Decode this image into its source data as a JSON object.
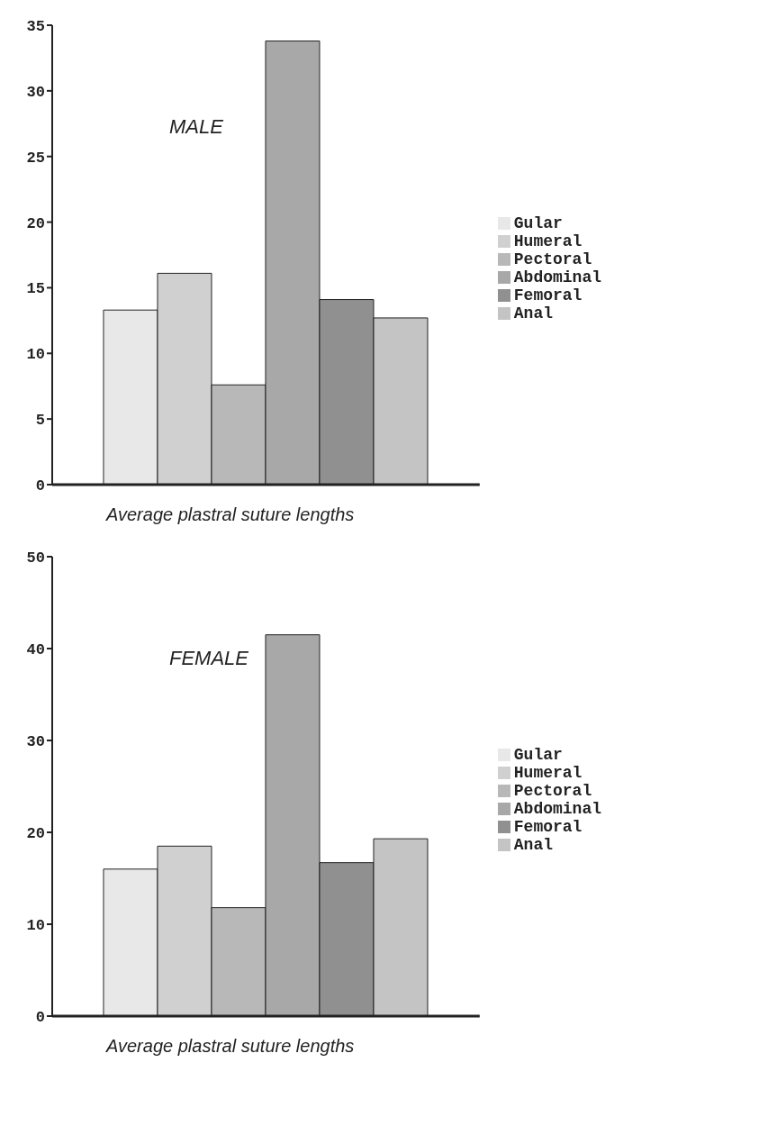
{
  "chart_data": [
    {
      "type": "bar",
      "title": "MALE",
      "xlabel": "Average plastral suture lengths",
      "categories": [
        null
      ],
      "series": [
        {
          "name": "Gular",
          "color": "#e8e8e8",
          "values": [
            13.3
          ]
        },
        {
          "name": "Humeral",
          "color": "#d0d0d0",
          "values": [
            16.1
          ]
        },
        {
          "name": "Pectoral",
          "color": "#b8b8b8",
          "values": [
            7.6
          ]
        },
        {
          "name": "Abdominal",
          "color": "#a8a8a8",
          "values": [
            33.8
          ]
        },
        {
          "name": "Femoral",
          "color": "#909090",
          "values": [
            14.1
          ]
        },
        {
          "name": "Anal",
          "color": "#c4c4c4",
          "values": [
            12.7
          ]
        }
      ],
      "ylim": [
        0,
        35
      ],
      "yticks": [
        0,
        5,
        10,
        15,
        20,
        25,
        30,
        35
      ],
      "grid": false,
      "legend": "right"
    },
    {
      "type": "bar",
      "title": "FEMALE",
      "xlabel": "Average plastral suture lengths",
      "categories": [
        null
      ],
      "series": [
        {
          "name": "Gular",
          "color": "#e8e8e8",
          "values": [
            16
          ]
        },
        {
          "name": "Humeral",
          "color": "#d0d0d0",
          "values": [
            18.5
          ]
        },
        {
          "name": "Pectoral",
          "color": "#b8b8b8",
          "values": [
            11.8
          ]
        },
        {
          "name": "Abdominal",
          "color": "#a8a8a8",
          "values": [
            41.5
          ]
        },
        {
          "name": "Femoral",
          "color": "#909090",
          "values": [
            16.7
          ]
        },
        {
          "name": "Anal",
          "color": "#c4c4c4",
          "values": [
            19.3
          ]
        }
      ],
      "ylim": [
        0,
        50
      ],
      "yticks": [
        0,
        10,
        20,
        30,
        40,
        50
      ],
      "grid": false,
      "legend": "right"
    }
  ]
}
